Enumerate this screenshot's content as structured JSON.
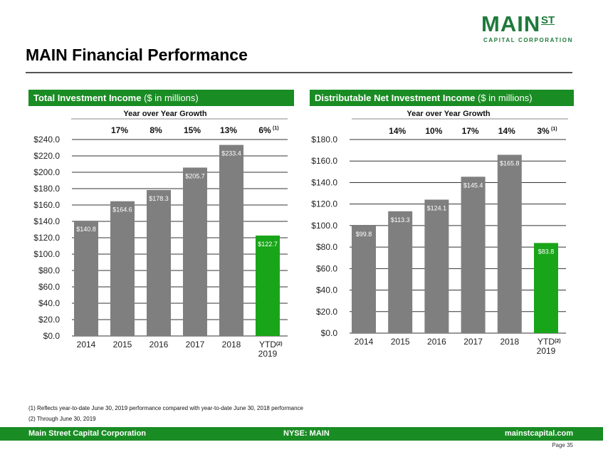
{
  "logo": {
    "main": "MAIN",
    "st": "ST",
    "sub": "CAPITAL CORPORATION"
  },
  "page_title": "MAIN Financial Performance",
  "left_panel": {
    "title_bold": "Total Investment Income",
    "title_rest": " ($ in millions)"
  },
  "right_panel": {
    "title_bold": "Distributable Net Investment Income",
    "title_rest": " ($ in millions)"
  },
  "footnotes": [
    "(1)    Reflects year-to-date June 30, 2019 performance compared with year-to-date June 30, 2018 performance",
    "(2)    Through June 30, 2019"
  ],
  "footer": {
    "left": "Main Street Capital Corporation",
    "center": "NYSE: MAIN",
    "right": "mainstcapital.com"
  },
  "page_number": "Page  35",
  "colors": {
    "brand_green": "#1a8c24",
    "bar_gray": "#7f7f7f",
    "bar_green": "#19a519"
  },
  "chart_data": [
    {
      "type": "bar",
      "title": "Total Investment Income ($ in millions)",
      "growth_title": "Year over Year Growth",
      "categories": [
        "2014",
        "2015",
        "2016",
        "2017",
        "2018",
        "YTD 2019"
      ],
      "category_lines": [
        [
          "2014"
        ],
        [
          "2015"
        ],
        [
          "2016"
        ],
        [
          "2017"
        ],
        [
          "2018"
        ],
        [
          "YTD",
          "2019"
        ]
      ],
      "category_sup": [
        "",
        "",
        "",
        "",
        "",
        "(2)"
      ],
      "values": [
        140.8,
        164.6,
        178.3,
        205.7,
        233.4,
        122.7
      ],
      "value_labels": [
        "$140.8",
        "$164.6",
        "$178.3",
        "$205.7",
        "$233.4",
        "$122.7"
      ],
      "growth": [
        "17%",
        "8%",
        "15%",
        "13%",
        "6%"
      ],
      "growth_sup": [
        "",
        "",
        "",
        "",
        "(1)"
      ],
      "ylim": [
        0,
        240
      ],
      "yticks": [
        0,
        20,
        40,
        60,
        80,
        100,
        120,
        140,
        160,
        180,
        200,
        220,
        240
      ],
      "ytick_labels": [
        "$0.0",
        "$20.0",
        "$40.0",
        "$60.0",
        "$80.0",
        "$100.0",
        "$120.0",
        "$140.0",
        "$160.0",
        "$180.0",
        "$200.0",
        "$220.0",
        "$240.0"
      ],
      "grid": true,
      "highlight_last": true
    },
    {
      "type": "bar",
      "title": "Distributable Net Investment Income ($ in millions)",
      "growth_title": "Year over Year Growth",
      "categories": [
        "2014",
        "2015",
        "2016",
        "2017",
        "2018",
        "YTD 2019"
      ],
      "category_lines": [
        [
          "2014"
        ],
        [
          "2015"
        ],
        [
          "2016"
        ],
        [
          "2017"
        ],
        [
          "2018"
        ],
        [
          "YTD",
          "2019"
        ]
      ],
      "category_sup": [
        "",
        "",
        "",
        "",
        "",
        "(2)"
      ],
      "values": [
        99.8,
        113.3,
        124.1,
        145.4,
        165.8,
        83.8
      ],
      "value_labels": [
        "$99.8",
        "$113.3",
        "$124.1",
        "$145.4",
        "$165.8",
        "$83.8"
      ],
      "growth": [
        "14%",
        "10%",
        "17%",
        "14%",
        "3%"
      ],
      "growth_sup": [
        "",
        "",
        "",
        "",
        "(1)"
      ],
      "ylim": [
        0,
        180
      ],
      "yticks": [
        0,
        20,
        40,
        60,
        80,
        100,
        120,
        140,
        160,
        180
      ],
      "ytick_labels": [
        "$0.0",
        "$20.0",
        "$40.0",
        "$60.0",
        "$80.0",
        "$100.0",
        "$120.0",
        "$140.0",
        "$160.0",
        "$180.0"
      ],
      "grid": true,
      "highlight_last": true
    }
  ]
}
